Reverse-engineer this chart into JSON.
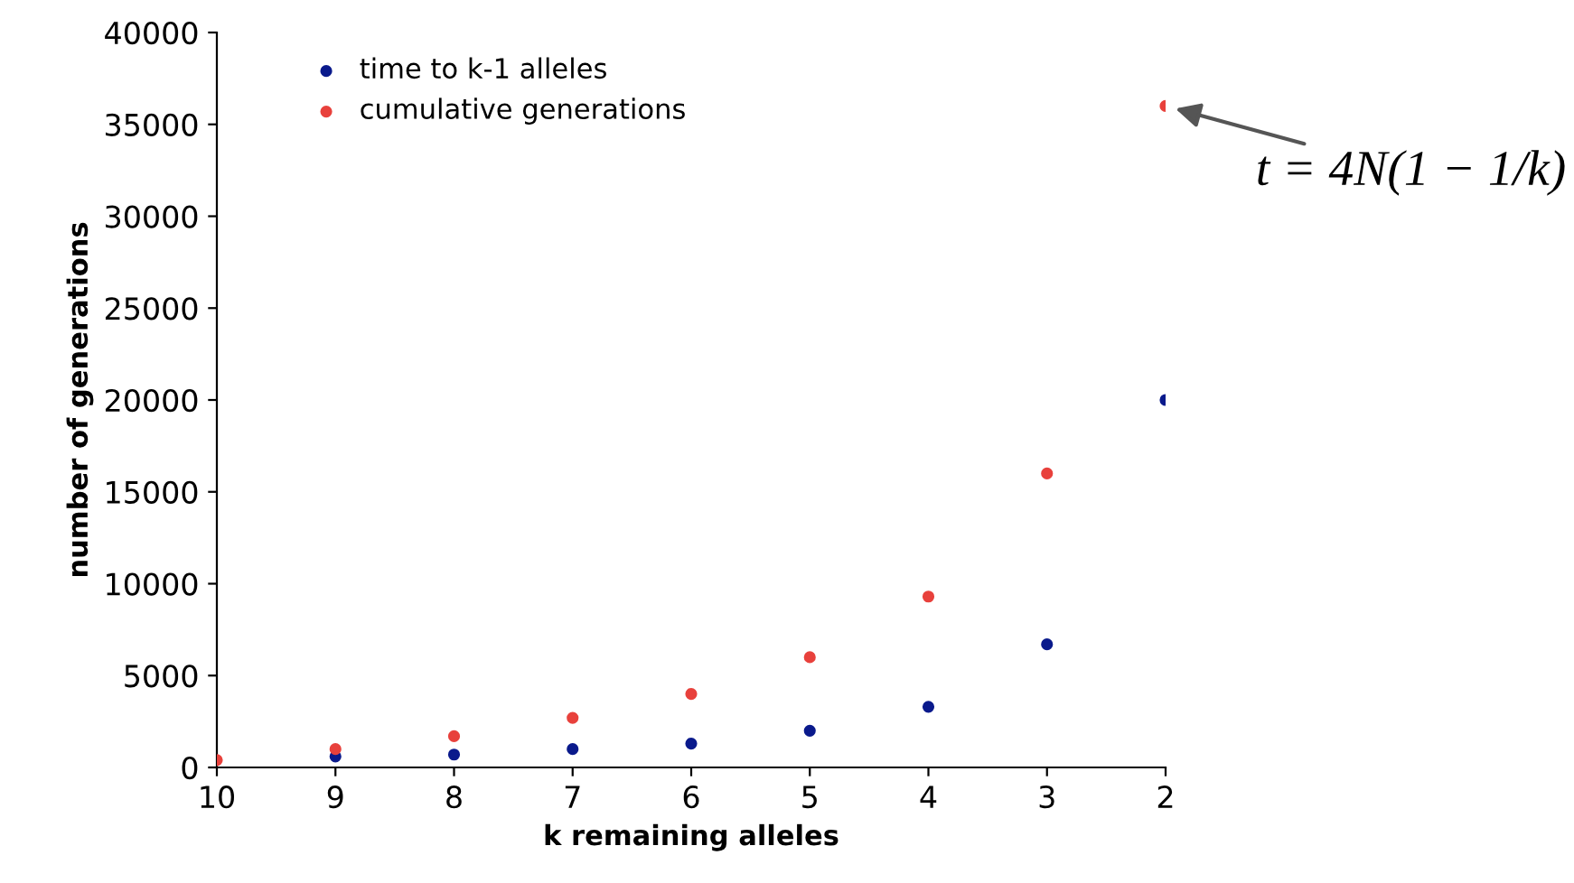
{
  "chart_data": {
    "type": "scatter",
    "xlabel": "k remaining alleles",
    "ylabel": "number of generations",
    "x": [
      10,
      9,
      8,
      7,
      6,
      5,
      4,
      3,
      2
    ],
    "series": [
      {
        "name": "time to k-1 alleles",
        "color": "#0a1a8c",
        "values": [
          null,
          600,
          700,
          1000,
          1300,
          2000,
          3300,
          6700,
          20000
        ]
      },
      {
        "name": "cumulative generations",
        "color": "#e8413c",
        "values": [
          400,
          1000,
          1700,
          2700,
          4000,
          6000,
          9300,
          16000,
          36000
        ]
      }
    ],
    "xlim": [
      10,
      2
    ],
    "xticks": [
      10,
      9,
      8,
      7,
      6,
      5,
      4,
      3,
      2
    ],
    "ylim": [
      0,
      40000
    ],
    "yticks": [
      0,
      5000,
      10000,
      15000,
      20000,
      25000,
      30000,
      35000,
      40000
    ],
    "grid": false,
    "legend": "top left",
    "marker": "circle",
    "annotations": [
      {
        "text": "t = 4N(1 − 1/k)",
        "x": 2,
        "y": 36000
      }
    ]
  }
}
